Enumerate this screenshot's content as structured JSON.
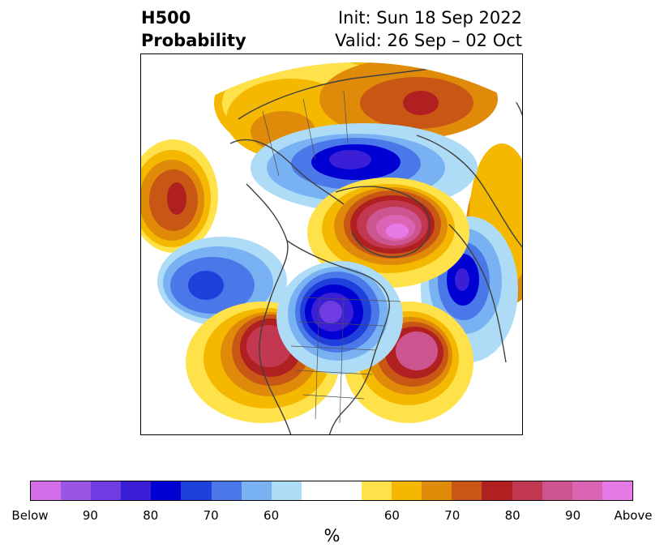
{
  "title": {
    "left_line1": "H500",
    "left_line2": "Probability",
    "right_line1": "Init: Sun 18 Sep 2022",
    "right_line2": "Valid: 26 Sep – 02 Oct"
  },
  "map": {
    "projection": "north-polar-stereographic",
    "anomalies": [
      {
        "region": "Greenland / Arctic",
        "sign": "above",
        "level": "Above"
      },
      {
        "region": "Central Canada / Hudson Bay",
        "sign": "below",
        "level": "90"
      },
      {
        "region": "Western US",
        "sign": "above",
        "level": "80"
      },
      {
        "region": "North Atlantic",
        "sign": "above",
        "level": "90"
      },
      {
        "region": "Northeast Pacific",
        "sign": "below",
        "level": "80"
      },
      {
        "region": "Scandinavia",
        "sign": "below",
        "level": "80"
      },
      {
        "region": "Siberia",
        "sign": "below",
        "level": "80"
      },
      {
        "region": "Central Pacific",
        "sign": "above",
        "level": "80"
      },
      {
        "region": "East Asia",
        "sign": "above",
        "level": "80"
      }
    ]
  },
  "colorbar": {
    "colors": [
      "#d46ee8",
      "#9a55e6",
      "#6e3ce0",
      "#3a1fd6",
      "#0000d2",
      "#2040dc",
      "#4a78e8",
      "#78b2f2",
      "#aedcf7",
      "#ffffff",
      "#ffffff",
      "#ffe14a",
      "#f5b800",
      "#e08a0a",
      "#c85614",
      "#b02020",
      "#c23850",
      "#cc5590",
      "#dc64b4",
      "#e67ae6"
    ],
    "tick_labels": [
      "Below",
      "90",
      "80",
      "70",
      "60",
      "60",
      "70",
      "80",
      "90",
      "Above"
    ],
    "unit": "%"
  }
}
